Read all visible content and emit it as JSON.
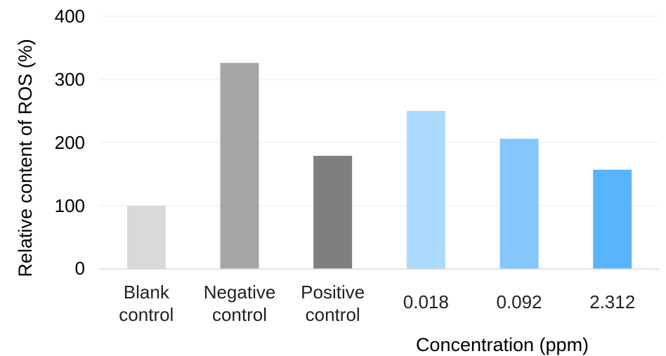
{
  "chart_data": {
    "type": "bar",
    "categories": [
      [
        "Blank",
        "control"
      ],
      [
        "Negative",
        "control"
      ],
      [
        "Positive",
        "control"
      ],
      [
        "0.018"
      ],
      [
        "0.092"
      ],
      [
        "2.312"
      ]
    ],
    "values": [
      100,
      326,
      179,
      250,
      206,
      157
    ],
    "colors": [
      "#d9d9d9",
      "#a6a6a6",
      "#7f7f7f",
      "#acdafe",
      "#83c7fd",
      "#58b5fd"
    ],
    "ylabel": "Relative content of ROS (%)",
    "xlabel": "Concentration (ppm)",
    "ylim": [
      0,
      400
    ],
    "yticks": [
      0,
      100,
      200,
      300,
      400
    ],
    "grid": true
  }
}
